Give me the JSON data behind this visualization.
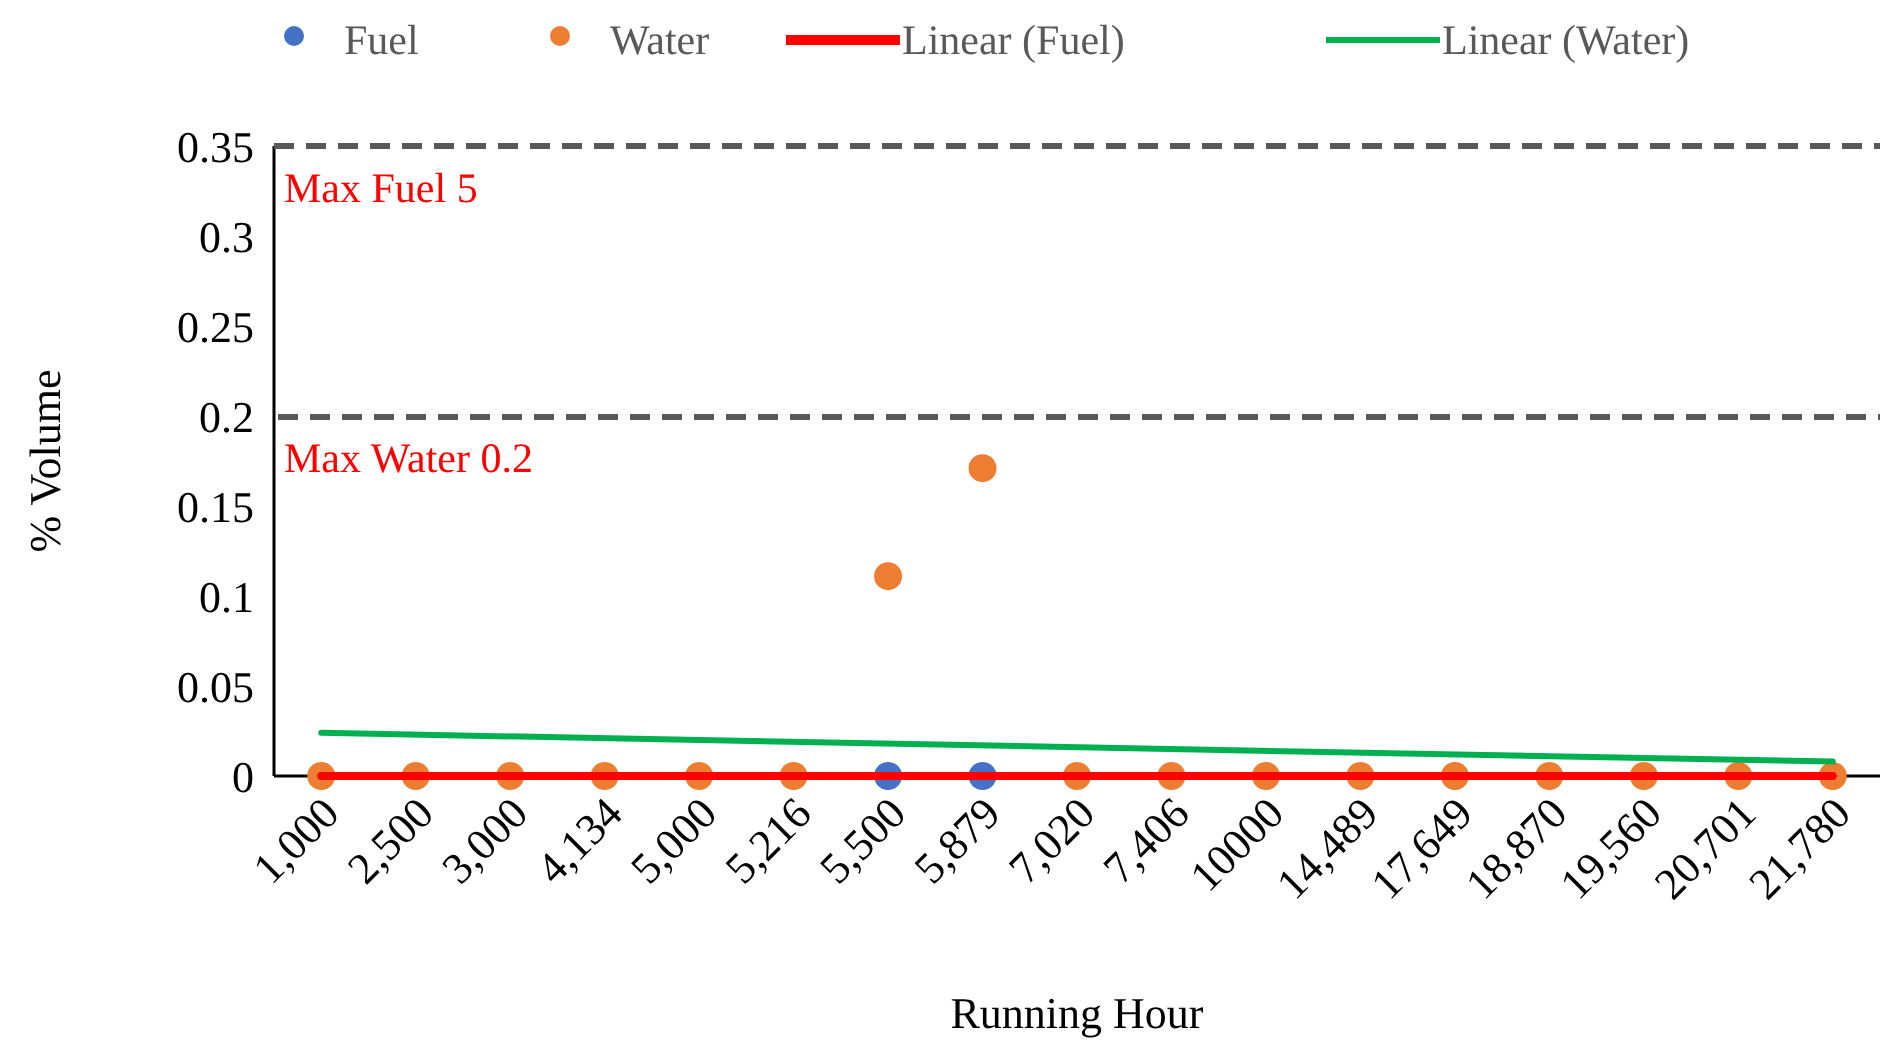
{
  "chart_data": {
    "type": "scatter",
    "xlabel": "Running Hour",
    "ylabel": "% Volume",
    "categories": [
      "1,000",
      "2,500",
      "3,000",
      "4,134",
      "5,000",
      "5,216",
      "5,500",
      "5,879",
      "7,020",
      "7,406",
      "10000",
      "14,489",
      "17,649",
      "18,870",
      "19,560",
      "20,701",
      "21,780"
    ],
    "series": [
      {
        "name": "Fuel",
        "type": "scatter",
        "color": "#4472c4",
        "marker": "circle",
        "values": [
          null,
          null,
          null,
          null,
          null,
          null,
          0,
          0,
          null,
          null,
          null,
          null,
          null,
          null,
          null,
          null,
          null
        ]
      },
      {
        "name": "Water",
        "type": "scatter",
        "color": "#ed7d31",
        "marker": "circle",
        "values": [
          0,
          0,
          0,
          0,
          0,
          0,
          0.111,
          0.171,
          0,
          0,
          0,
          0,
          0,
          0,
          0,
          0,
          0
        ]
      },
      {
        "name": "Linear (Fuel)",
        "type": "line",
        "color": "#ff0000",
        "line_style": "solid",
        "x": [
          "1,000",
          "21,780"
        ],
        "values": [
          0,
          0
        ]
      },
      {
        "name": "Linear (Water)",
        "type": "line",
        "color": "#00b050",
        "line_style": "solid",
        "x": [
          "1,000",
          "21,780"
        ],
        "values": [
          0.024,
          0.008
        ]
      }
    ],
    "ylim": [
      0,
      0.35
    ],
    "yticks": [
      0,
      0.05,
      0.1,
      0.15,
      0.2,
      0.25,
      0.3,
      0.35
    ],
    "annotations": [
      "Max Fuel 5"
    ],
    "ref_lines": [
      {
        "axis": "y",
        "value": 0.2,
        "label": "Max Water 0.2",
        "color": "#595959",
        "line_style": "dashed"
      }
    ],
    "grid": false,
    "legend": "top"
  }
}
